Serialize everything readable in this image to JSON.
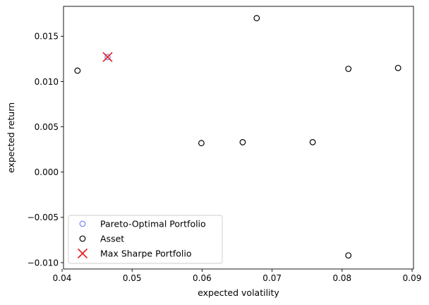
{
  "chart_data": {
    "type": "scatter",
    "xlabel": "expected volatility",
    "ylabel": "expected return",
    "xlim": [
      0.0402,
      0.0902
    ],
    "ylim": [
      -0.0107,
      0.0183
    ],
    "xticks": [
      0.04,
      0.05,
      0.06,
      0.07,
      0.08,
      0.09
    ],
    "xtick_labels": [
      "0.04",
      "0.05",
      "0.06",
      "0.07",
      "0.08",
      "0.09"
    ],
    "yticks": [
      -0.01,
      -0.005,
      0.0,
      0.005,
      0.01,
      0.015
    ],
    "ytick_labels": [
      "−0.010",
      "−0.005",
      "0.000",
      "0.005",
      "0.010",
      "0.015"
    ],
    "grid": false,
    "legend_position": "lower-left",
    "series": [
      {
        "name": "Pareto-Optimal Portfolio",
        "marker": "hollow-circle",
        "color": "#7f7fff",
        "points": [
          {
            "x": 0.0465,
            "y": 0.0127
          }
        ]
      },
      {
        "name": "Asset",
        "marker": "hollow-circle",
        "color": "#000000",
        "points": [
          {
            "x": 0.0422,
            "y": 0.0112
          },
          {
            "x": 0.0678,
            "y": 0.017
          },
          {
            "x": 0.0599,
            "y": 0.0032
          },
          {
            "x": 0.0658,
            "y": 0.0033
          },
          {
            "x": 0.0758,
            "y": 0.0033
          },
          {
            "x": 0.0809,
            "y": 0.0114
          },
          {
            "x": 0.088,
            "y": 0.0115
          },
          {
            "x": 0.0809,
            "y": -0.0092
          }
        ]
      },
      {
        "name": "Max Sharpe Portfolio",
        "marker": "x",
        "color": "#e41a1c",
        "points": [
          {
            "x": 0.0465,
            "y": 0.0127
          }
        ]
      }
    ]
  }
}
